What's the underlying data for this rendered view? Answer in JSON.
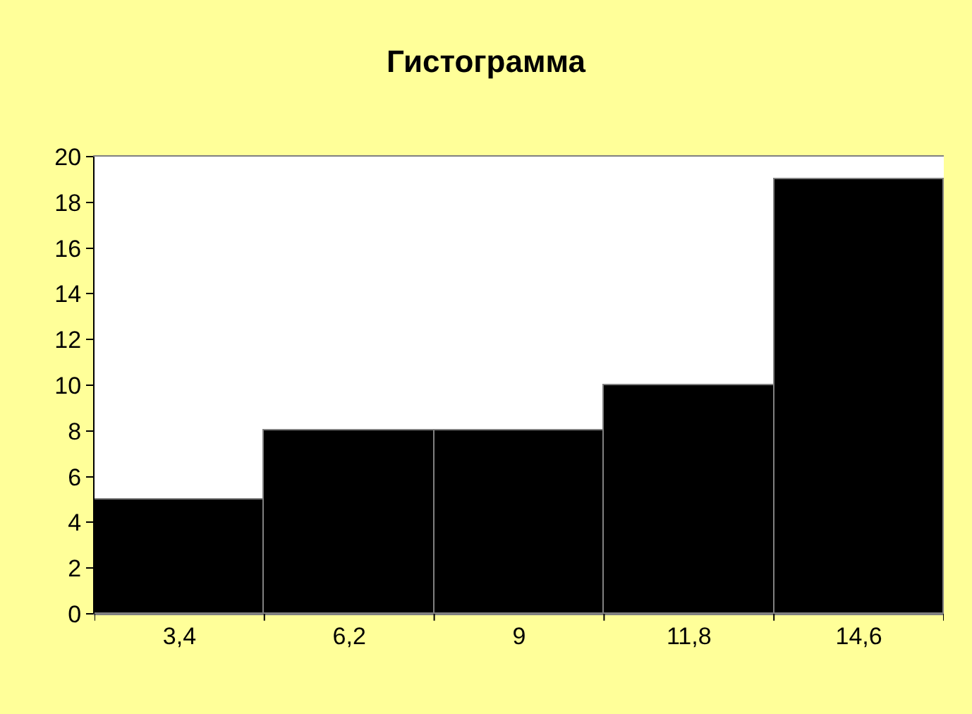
{
  "chart_data": {
    "type": "bar",
    "title": "Гистограмма",
    "categories": [
      "3,4",
      "6,2",
      "9",
      "11,8",
      "14,6"
    ],
    "values": [
      5,
      8,
      8,
      10,
      19
    ],
    "color": "#000000",
    "ylim": [
      0,
      20
    ],
    "yticks": [
      0,
      2,
      4,
      6,
      8,
      10,
      12,
      14,
      16,
      18,
      20
    ]
  }
}
